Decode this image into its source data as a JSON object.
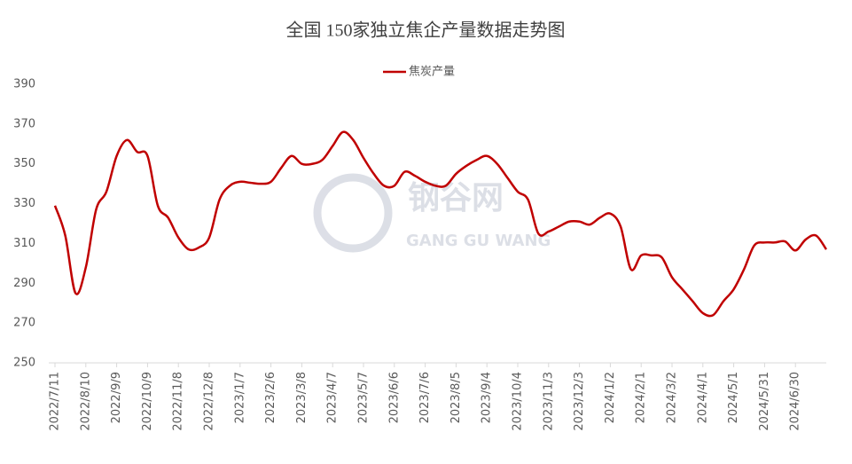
{
  "chart_data": {
    "type": "line",
    "title": "全国 150家独立焦企产量数据走势图",
    "watermark": {
      "name": "钢谷网",
      "pinyin": "GANG GU WANG"
    },
    "categories": [
      "2022/7/11",
      null,
      null,
      "2022/8/10",
      null,
      null,
      "2022/9/9",
      null,
      null,
      "2022/10/9",
      null,
      null,
      "2022/11/8",
      null,
      null,
      "2022/12/8",
      null,
      null,
      "2023/1/7",
      null,
      null,
      "2023/2/6",
      null,
      null,
      "2023/3/8",
      null,
      null,
      "2023/4/7",
      null,
      null,
      "2023/5/7",
      null,
      null,
      "2023/6/6",
      null,
      null,
      "2023/7/6",
      null,
      null,
      "2023/8/5",
      null,
      null,
      "2023/9/4",
      null,
      null,
      "2023/10/4",
      null,
      null,
      "2023/11/3",
      null,
      null,
      "2023/12/3",
      null,
      null,
      "2024/1/2",
      null,
      null,
      "2024/2/1",
      null,
      null,
      "2024/3/2",
      null,
      null,
      "2024/4/1",
      null,
      null,
      "2024/5/1",
      null,
      null,
      "2024/5/31",
      null,
      null,
      "2024/6/30",
      null,
      null,
      null
    ],
    "series": [
      {
        "name": "焦炭产量",
        "color": "#c00000",
        "values": [
          329,
          314,
          285,
          298,
          327,
          336,
          354,
          362,
          356,
          354,
          329,
          323,
          313,
          307,
          308,
          313,
          332,
          339,
          341,
          340.5,
          340,
          341,
          348,
          354,
          350,
          350,
          352,
          359,
          366,
          362,
          353,
          345,
          339,
          339,
          346,
          344,
          341,
          339,
          339,
          345,
          349,
          352,
          354,
          350,
          343,
          336,
          332,
          315,
          316,
          318.5,
          321,
          321,
          319.5,
          323,
          325,
          318.5,
          297,
          304,
          304,
          303,
          293,
          287,
          281,
          275,
          274,
          281,
          287,
          297,
          309,
          310.5,
          310.5,
          311,
          306.5,
          312,
          314,
          307
        ]
      }
    ],
    "ylim": [
      250,
      390
    ],
    "yticks": [
      250,
      270,
      290,
      310,
      330,
      350,
      370,
      390
    ],
    "grid": false,
    "legend": "top"
  }
}
